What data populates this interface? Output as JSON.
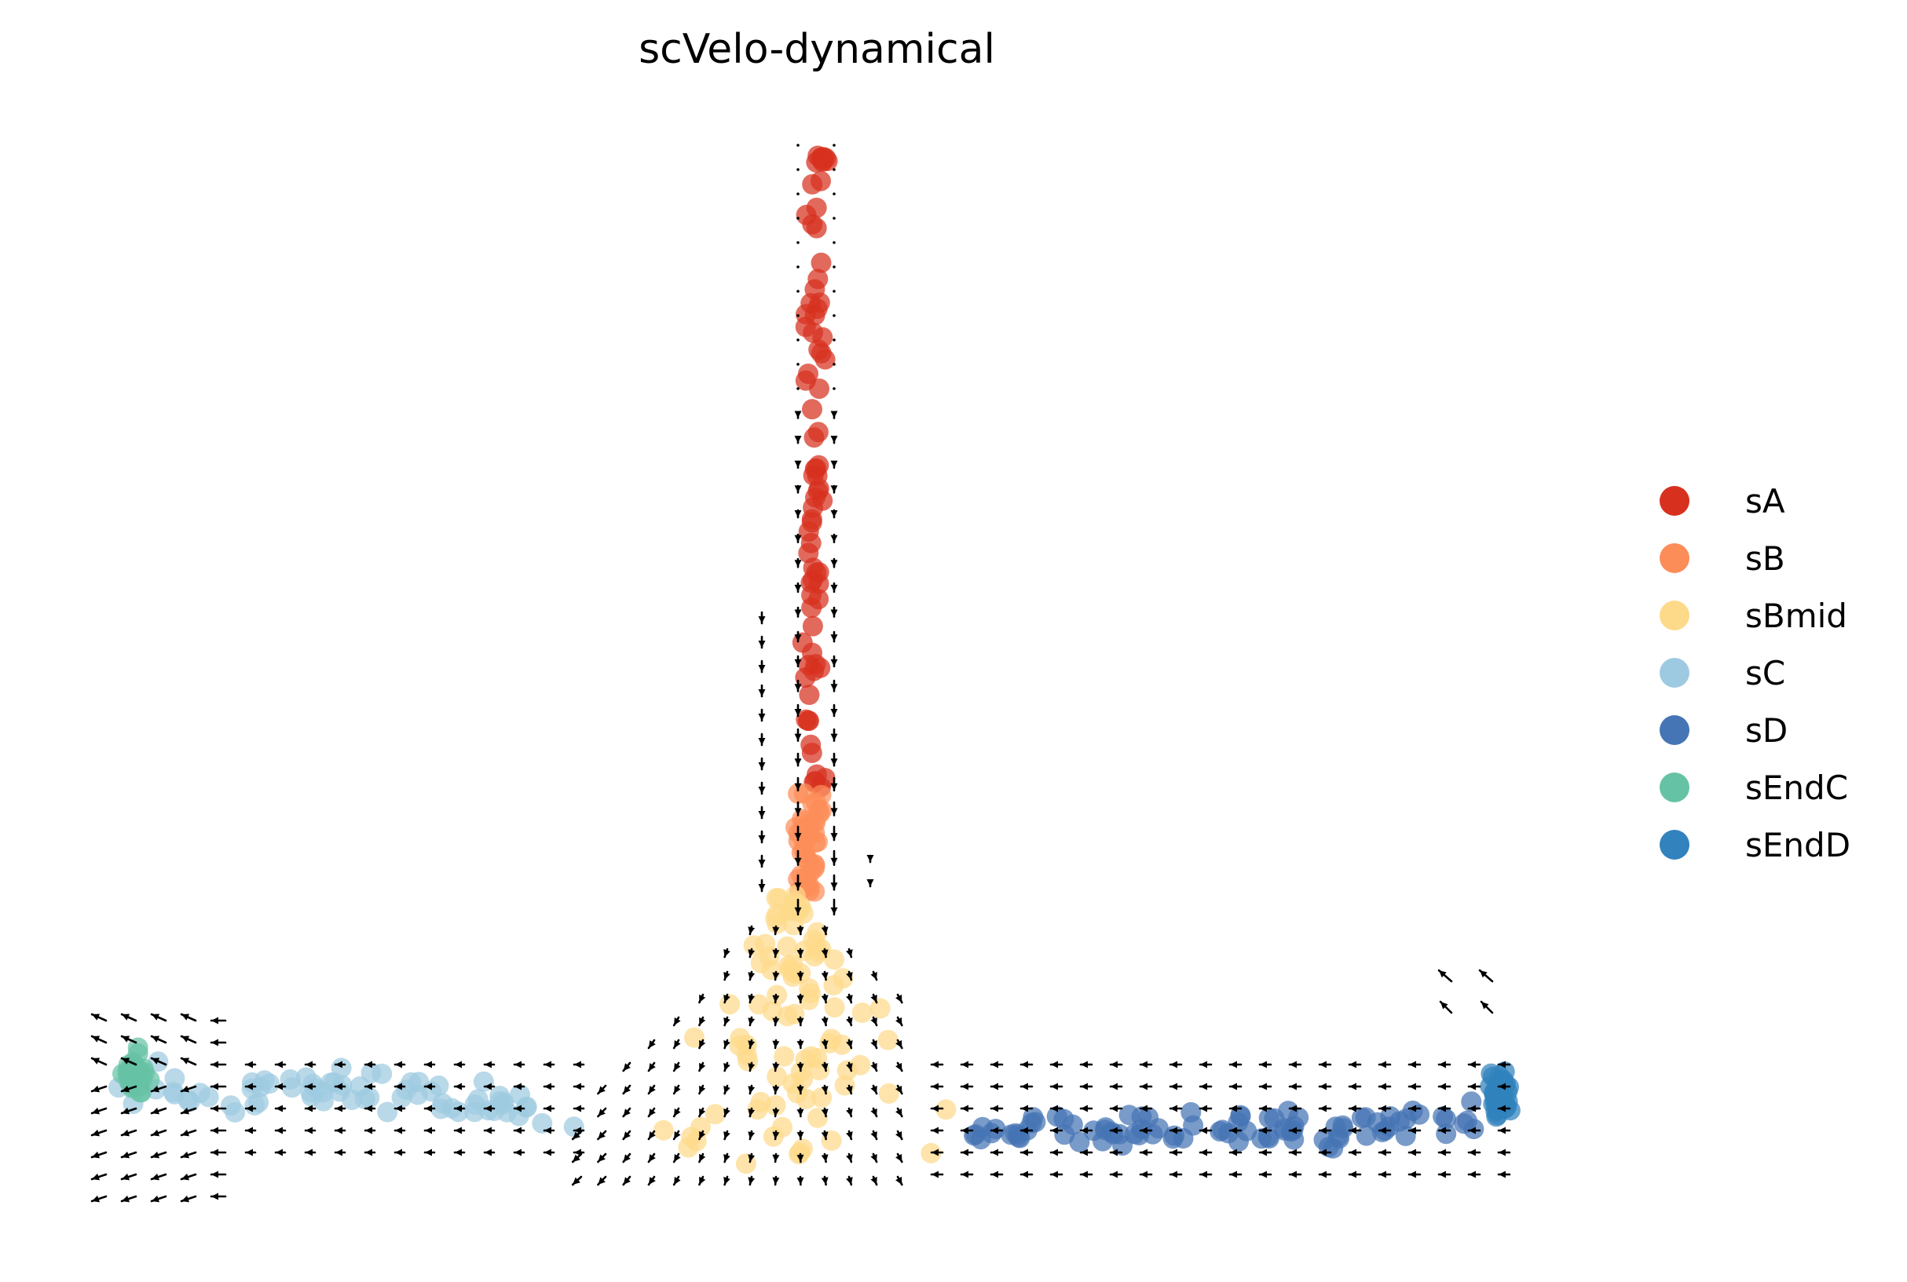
{
  "chart_data": {
    "type": "scatter",
    "title": "scVelo-dynamical",
    "xlabel": "",
    "ylabel": "",
    "axes_visible": false,
    "grid": false,
    "legend_position": "right",
    "xlim": [
      -10.5,
      10.5
    ],
    "ylim": [
      -1.5,
      12.2
    ],
    "series": [
      {
        "name": "sA",
        "color": "#d7301f"
      },
      {
        "name": "sB",
        "color": "#fc8d59"
      },
      {
        "name": "sBmid",
        "color": "#fdd98a"
      },
      {
        "name": "sC",
        "color": "#9ecae1"
      },
      {
        "name": "sD",
        "color": "#4575b4"
      },
      {
        "name": "sEndC",
        "color": "#66c2a5"
      },
      {
        "name": "sEndD",
        "color": "#3182bd"
      }
    ],
    "annotations": [
      "velocity stream arrows overlaid on cell embedding"
    ]
  }
}
